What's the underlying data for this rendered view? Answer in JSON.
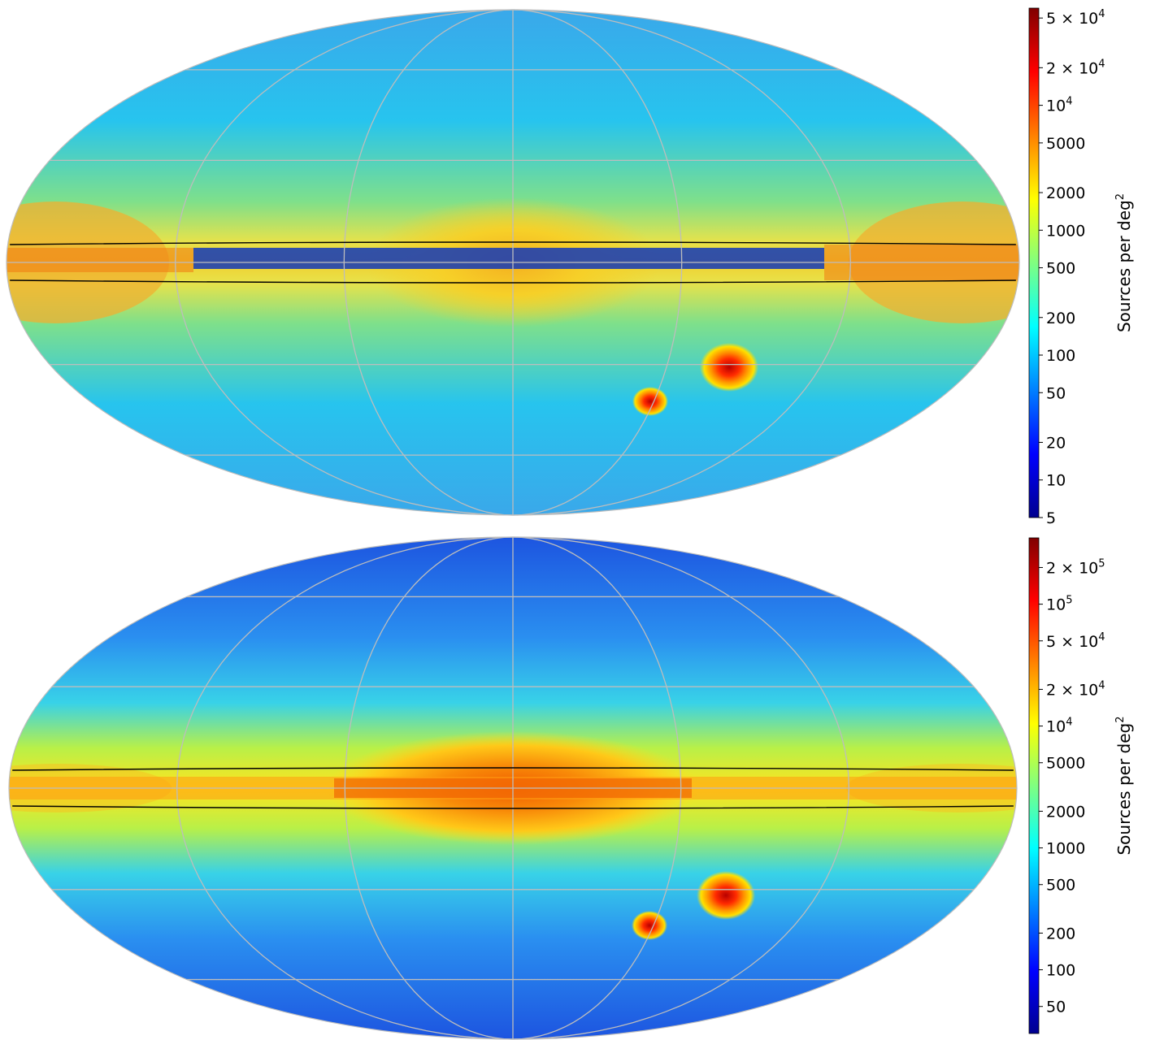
{
  "panels": [
    {
      "id": "top",
      "projection": "mollweide",
      "colormap": "jet",
      "scale": "log",
      "galactic_plane_band": "black lines above and below the equator",
      "features": [
        "Galactic plane",
        "Galactic bulge",
        "Large Magellanic Cloud",
        "Small Magellanic Cloud"
      ],
      "colorbar": {
        "label": "Sources per deg",
        "label_exponent": "2",
        "range": [
          5,
          60000
        ],
        "ticks": [
          {
            "value": 50000,
            "mantissa": "5",
            "exp": "4"
          },
          {
            "value": 20000,
            "mantissa": "2",
            "exp": "4"
          },
          {
            "value": 10000,
            "mantissa": "",
            "exp": "4"
          },
          {
            "value": 5000,
            "text": "5000"
          },
          {
            "value": 2000,
            "text": "2000"
          },
          {
            "value": 1000,
            "text": "1000"
          },
          {
            "value": 500,
            "text": "500"
          },
          {
            "value": 200,
            "text": "200"
          },
          {
            "value": 100,
            "text": "100"
          },
          {
            "value": 50,
            "text": "50"
          },
          {
            "value": 20,
            "text": "20"
          },
          {
            "value": 10,
            "text": "10"
          },
          {
            "value": 5,
            "text": "5"
          }
        ]
      }
    },
    {
      "id": "bottom",
      "projection": "mollweide",
      "colormap": "jet",
      "scale": "log",
      "galactic_plane_band": "black lines above and below the equator",
      "features": [
        "Galactic plane",
        "Galactic bulge",
        "Large Magellanic Cloud",
        "Small Magellanic Cloud"
      ],
      "colorbar": {
        "label": "Sources per deg",
        "label_exponent": "2",
        "range": [
          30,
          350000
        ],
        "ticks": [
          {
            "value": 200000,
            "mantissa": "2",
            "exp": "5"
          },
          {
            "value": 100000,
            "mantissa": "",
            "exp": "5"
          },
          {
            "value": 50000,
            "mantissa": "5",
            "exp": "4"
          },
          {
            "value": 20000,
            "mantissa": "2",
            "exp": "4"
          },
          {
            "value": 10000,
            "mantissa": "",
            "exp": "4"
          },
          {
            "value": 5000,
            "text": "5000"
          },
          {
            "value": 2000,
            "text": "2000"
          },
          {
            "value": 1000,
            "text": "1000"
          },
          {
            "value": 500,
            "text": "500"
          },
          {
            "value": 200,
            "text": "200"
          },
          {
            "value": 100,
            "text": "100"
          },
          {
            "value": 50,
            "text": "50"
          }
        ]
      }
    }
  ],
  "colors": {
    "jet": [
      "#00008f",
      "#0000ff",
      "#0080ff",
      "#00ffff",
      "#80ff80",
      "#ffff00",
      "#ff8000",
      "#ff0000",
      "#800000"
    ],
    "graticule": "#bdbdbd",
    "plane_lines": "#000000"
  }
}
